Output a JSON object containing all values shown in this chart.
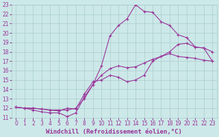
{
  "bg_color": "#cce8e8",
  "grid_color": "#aacccc",
  "line_color": "#993399",
  "marker": "+",
  "xlabel": "Windchill (Refroidissement éolien,°C)",
  "xlabel_fontsize": 6.5,
  "tick_fontsize": 5.5,
  "xlim": [
    -0.5,
    23.5
  ],
  "ylim": [
    11,
    23
  ],
  "xticks": [
    0,
    1,
    2,
    3,
    4,
    5,
    6,
    7,
    8,
    9,
    10,
    11,
    12,
    13,
    14,
    15,
    16,
    17,
    18,
    19,
    20,
    21,
    22,
    23
  ],
  "yticks": [
    11,
    12,
    13,
    14,
    15,
    16,
    17,
    18,
    19,
    20,
    21,
    22,
    23
  ],
  "curve1_x": [
    0,
    1,
    2,
    3,
    4,
    5,
    6,
    7,
    8,
    9,
    10,
    11,
    12,
    13,
    14,
    15,
    16,
    17,
    18,
    19,
    20,
    21,
    22,
    23
  ],
  "curve1_y": [
    12.1,
    12.0,
    11.8,
    11.6,
    11.5,
    11.5,
    11.1,
    11.5,
    13.2,
    14.5,
    15.5,
    16.2,
    16.5,
    16.3,
    16.4,
    16.8,
    17.2,
    17.5,
    17.8,
    17.5,
    17.4,
    17.3,
    17.1,
    17.0
  ],
  "curve2_x": [
    0,
    1,
    2,
    3,
    4,
    5,
    6,
    7,
    8,
    9,
    10,
    11,
    12,
    13,
    14,
    15,
    16,
    17,
    18,
    19,
    20,
    21,
    22,
    23
  ],
  "curve2_y": [
    12.1,
    12.0,
    12.0,
    11.9,
    11.8,
    11.8,
    11.8,
    12.0,
    13.0,
    14.5,
    16.5,
    19.7,
    20.8,
    21.5,
    23.0,
    22.3,
    22.2,
    21.2,
    20.8,
    19.8,
    19.5,
    18.5,
    18.4,
    18.0
  ],
  "curve3_x": [
    0,
    1,
    2,
    3,
    4,
    5,
    6,
    7,
    8,
    9,
    10,
    11,
    12,
    13,
    14,
    15,
    16,
    17,
    18,
    19,
    20,
    21,
    22,
    23
  ],
  "curve3_y": [
    12.1,
    12.0,
    12.0,
    11.9,
    11.8,
    11.7,
    12.0,
    11.9,
    13.5,
    14.8,
    15.0,
    15.5,
    15.3,
    14.8,
    15.0,
    15.5,
    17.0,
    17.5,
    18.0,
    18.8,
    18.9,
    18.5,
    18.4,
    17.0
  ]
}
